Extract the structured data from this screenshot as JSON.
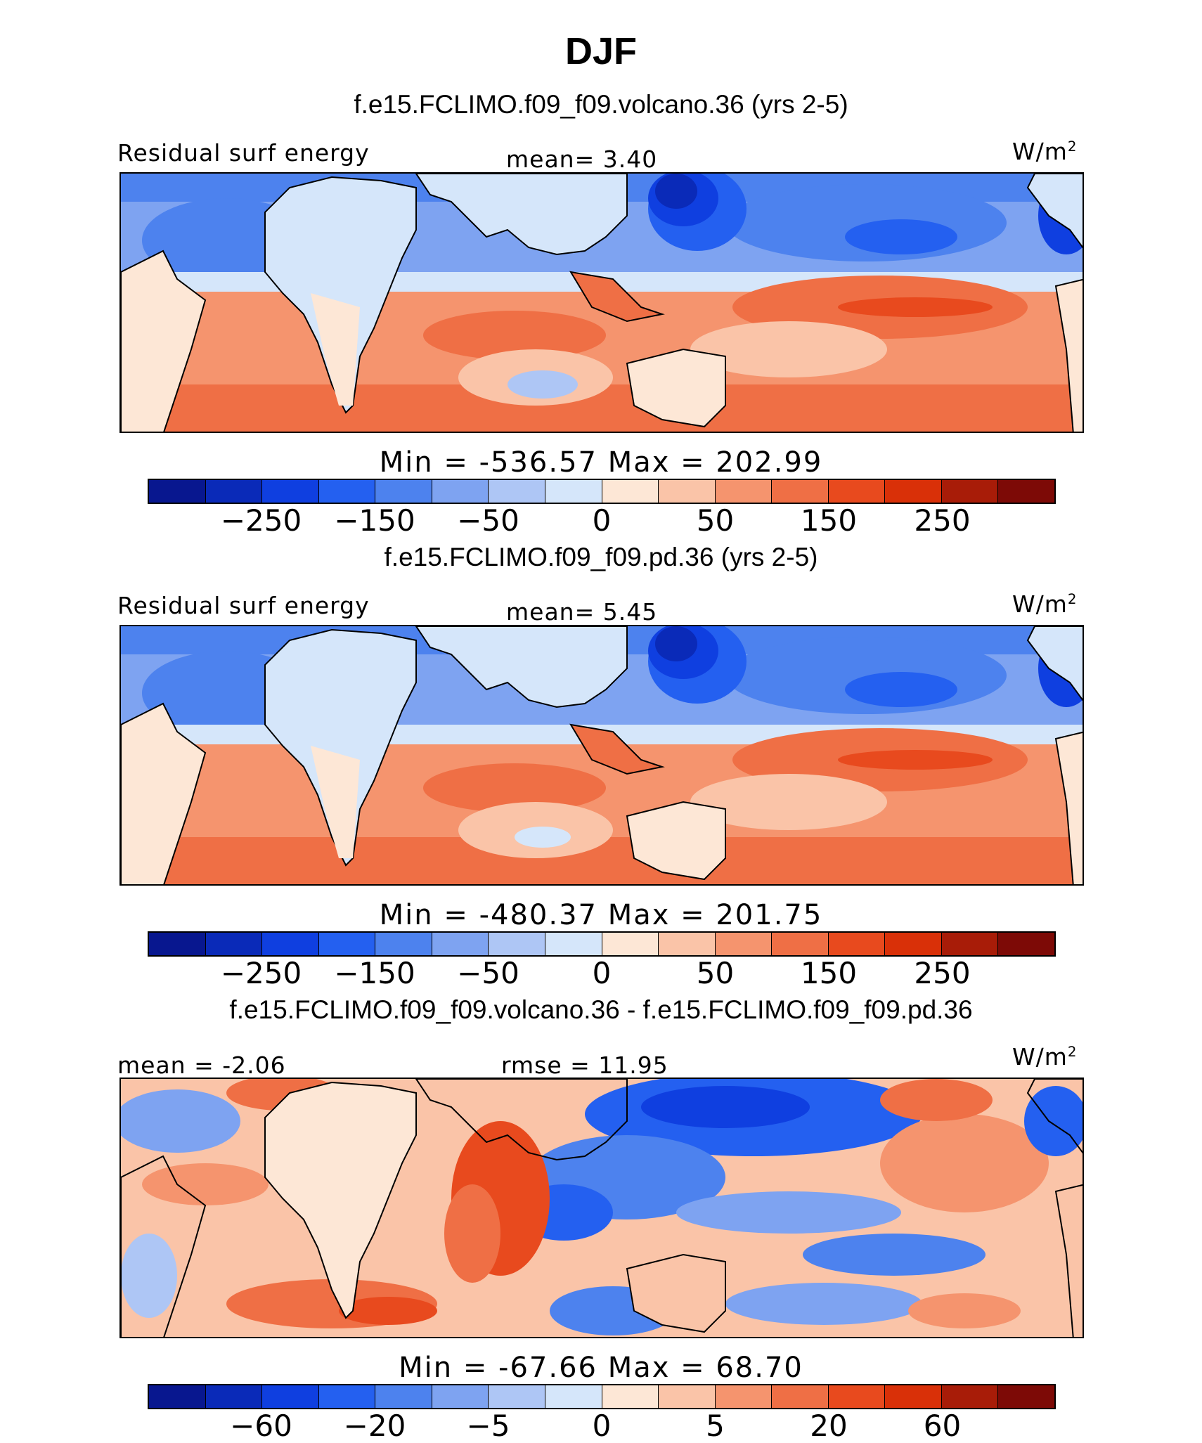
{
  "title": "DJF",
  "units": "W/m",
  "units_exp": "2",
  "colors": [
    "#08178f",
    "#0a2ab8",
    "#0f3fe0",
    "#2460f0",
    "#4d82ee",
    "#7ea3f1",
    "#aec6f5",
    "#d5e6fa",
    "#fde7d6",
    "#fac4a8",
    "#f5946e",
    "#ef6f45",
    "#e84a1e",
    "#d93008",
    "#a81c08",
    "#7d0a06"
  ],
  "panels": [
    {
      "run": "f.e15.FCLIMO.f09_f09.volcano.36 (yrs 2-5)",
      "left_label": "Residual surf energy",
      "mid_label": "mean=   3.40",
      "minmax": "Min = -536.57 Max = 202.99",
      "ticks": [
        "-250",
        "-150",
        "-50",
        "0",
        "50",
        "150",
        "250"
      ]
    },
    {
      "run": "f.e15.FCLIMO.f09_f09.pd.36 (yrs 2-5)",
      "left_label": "Residual surf energy",
      "mid_label": "mean=   5.45",
      "minmax": "Min = -480.37 Max = 201.75",
      "ticks": [
        "-250",
        "-150",
        "-50",
        "0",
        "50",
        "150",
        "250"
      ]
    },
    {
      "run": "f.e15.FCLIMO.f09_f09.volcano.36 - f.e15.FCLIMO.f09_f09.pd.36",
      "left_label": "mean =  -2.06",
      "mid_label": "rmse =  11.95",
      "minmax": "Min = -67.66 Max =  68.70",
      "ticks": [
        "-60",
        "-20",
        "-5",
        "0",
        "5",
        "20",
        "60"
      ]
    }
  ]
}
